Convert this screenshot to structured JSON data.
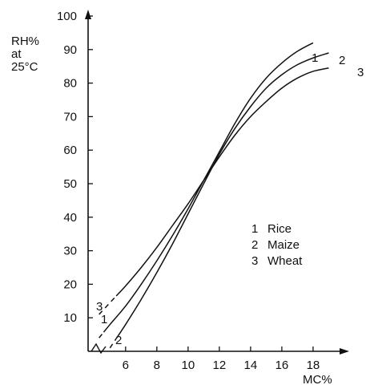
{
  "chart_data": {
    "type": "line",
    "ylabel_lines": [
      "RH%",
      "at",
      "25°C"
    ],
    "xlabel": "MC%",
    "xlim": [
      3.6,
      19.9
    ],
    "ylim": [
      0,
      100
    ],
    "xticks": [
      6,
      8,
      10,
      12,
      14,
      16,
      18
    ],
    "yticks": [
      10,
      20,
      30,
      40,
      50,
      60,
      70,
      80,
      90,
      100
    ],
    "x_axis_break": true,
    "grid": false,
    "legend_position": "center-right",
    "legend": [
      {
        "number": "1",
        "name": "Rice"
      },
      {
        "number": "2",
        "name": "Maize"
      },
      {
        "number": "3",
        "name": "Wheat"
      }
    ],
    "series": [
      {
        "number": "1",
        "name": "Rice",
        "dashed_until_x": 4.6,
        "points": [
          [
            4.3,
            4
          ],
          [
            5,
            8
          ],
          [
            6,
            13.5
          ],
          [
            7,
            20
          ],
          [
            8,
            27
          ],
          [
            9,
            34.5
          ],
          [
            10,
            42.5
          ],
          [
            11,
            51
          ],
          [
            12,
            59.5
          ],
          [
            13,
            68
          ],
          [
            14,
            75.5
          ],
          [
            15,
            81.5
          ],
          [
            16,
            86
          ],
          [
            17,
            89.5
          ],
          [
            18,
            92
          ]
        ]
      },
      {
        "number": "2",
        "name": "Maize",
        "dashed_until_x": 5.4,
        "points": [
          [
            5,
            1
          ],
          [
            6,
            8
          ],
          [
            7,
            15.5
          ],
          [
            8,
            23.5
          ],
          [
            9,
            32
          ],
          [
            10,
            41
          ],
          [
            11,
            50
          ],
          [
            12,
            58.8
          ],
          [
            13,
            66.5
          ],
          [
            14,
            73
          ],
          [
            15,
            78.5
          ],
          [
            16,
            82.5
          ],
          [
            17,
            85.5
          ],
          [
            18,
            87.5
          ],
          [
            19,
            89
          ]
        ]
      },
      {
        "number": "3",
        "name": "Wheat",
        "dashed_until_x": 5.4,
        "points": [
          [
            4.3,
            11
          ],
          [
            5,
            14.5
          ],
          [
            6,
            19.5
          ],
          [
            7,
            25
          ],
          [
            8,
            31
          ],
          [
            9,
            37.5
          ],
          [
            10,
            44
          ],
          [
            11,
            51
          ],
          [
            12,
            58
          ],
          [
            13,
            64.5
          ],
          [
            14,
            70
          ],
          [
            15,
            74.5
          ],
          [
            16,
            78.5
          ],
          [
            17,
            81.5
          ],
          [
            18,
            83.5
          ],
          [
            19,
            84.5
          ]
        ]
      }
    ]
  }
}
